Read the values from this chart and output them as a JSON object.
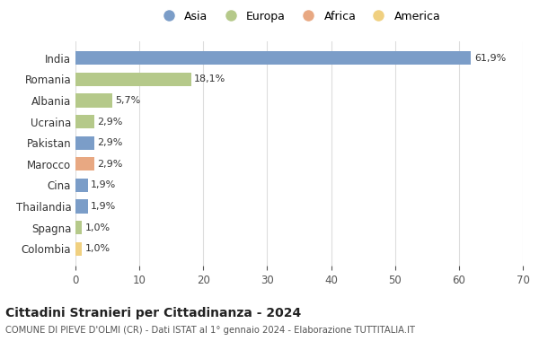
{
  "countries": [
    "India",
    "Romania",
    "Albania",
    "Ucraina",
    "Pakistan",
    "Marocco",
    "Cina",
    "Thailandia",
    "Spagna",
    "Colombia"
  ],
  "values": [
    61.9,
    18.1,
    5.7,
    2.9,
    2.9,
    2.9,
    1.9,
    1.9,
    1.0,
    1.0
  ],
  "labels": [
    "61,9%",
    "18,1%",
    "5,7%",
    "2,9%",
    "2,9%",
    "2,9%",
    "1,9%",
    "1,9%",
    "1,0%",
    "1,0%"
  ],
  "bar_colors": [
    "#7b9dc8",
    "#b5c98a",
    "#b5c98a",
    "#b5c98a",
    "#7b9dc8",
    "#e8a882",
    "#7b9dc8",
    "#7b9dc8",
    "#b5c98a",
    "#f0d080"
  ],
  "legend_labels": [
    "Asia",
    "Europa",
    "Africa",
    "America"
  ],
  "legend_colors": [
    "#7b9dc8",
    "#b5c98a",
    "#e8a882",
    "#f0d080"
  ],
  "title": "Cittadini Stranieri per Cittadinanza - 2024",
  "subtitle": "COMUNE DI PIEVE D'OLMI (CR) - Dati ISTAT al 1° gennaio 2024 - Elaborazione TUTTITALIA.IT",
  "xlim": [
    0,
    70
  ],
  "xticks": [
    0,
    10,
    20,
    30,
    40,
    50,
    60,
    70
  ],
  "background_color": "#ffffff",
  "grid_color": "#dddddd"
}
